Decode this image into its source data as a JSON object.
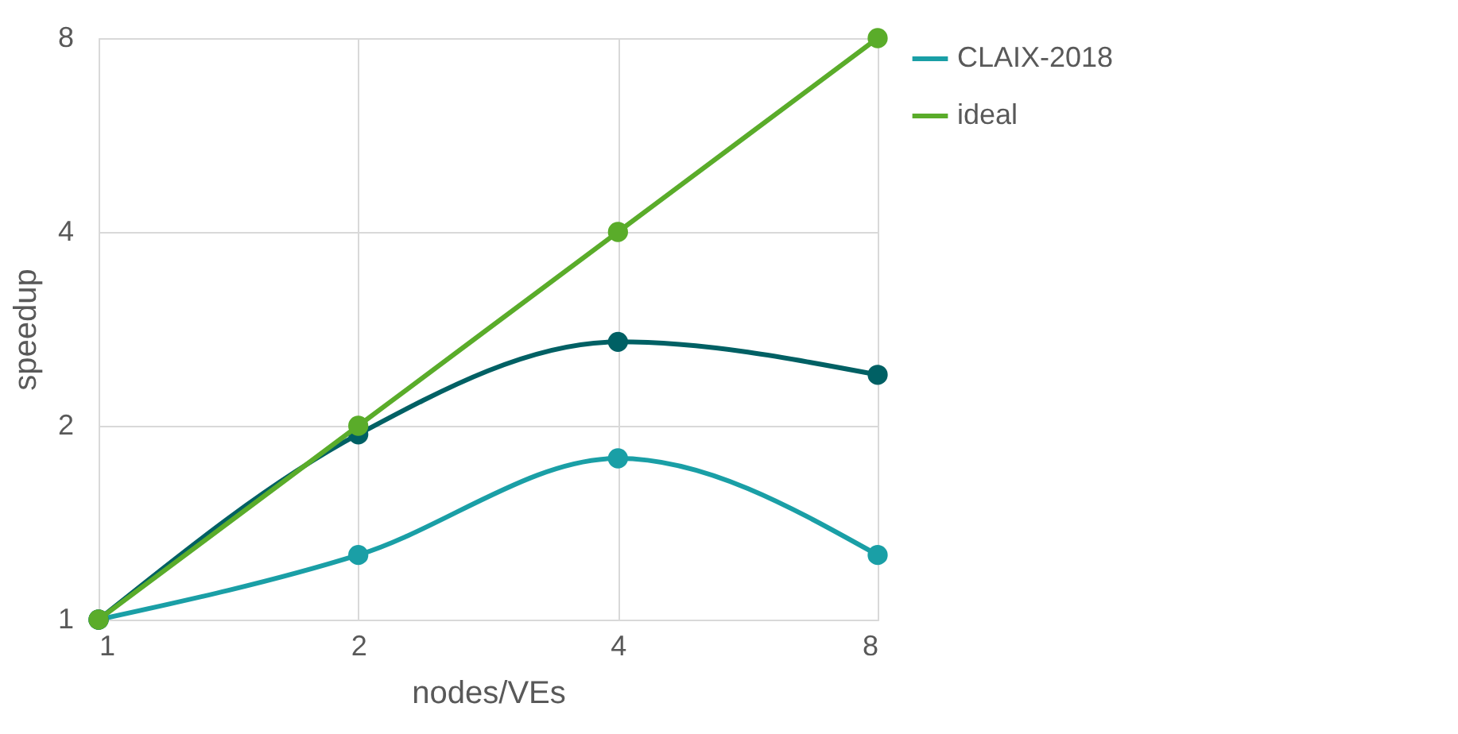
{
  "chart_data": {
    "type": "line",
    "xlabel": "nodes/VEs",
    "ylabel": "speedup",
    "log": "xy",
    "x": [
      1,
      2,
      4,
      8
    ],
    "xlim": [
      1,
      8
    ],
    "xticks": [
      1,
      2,
      4,
      8
    ],
    "ylim": [
      1,
      8
    ],
    "yticks": [
      1,
      2,
      4,
      8
    ],
    "grid": true,
    "legend": "right",
    "marker": "circle",
    "line_style": "solid",
    "series": [
      {
        "name": "CLAIX-2018",
        "color": "#1a9fa6",
        "values": [
          1,
          1.26,
          1.78,
          1.26
        ]
      },
      {
        "color": "#006064",
        "values": [
          1,
          1.94,
          2.7,
          2.4
        ]
      },
      {
        "name": "ideal",
        "color": "#5aac2a",
        "values": [
          1,
          2,
          4,
          8
        ]
      }
    ]
  }
}
